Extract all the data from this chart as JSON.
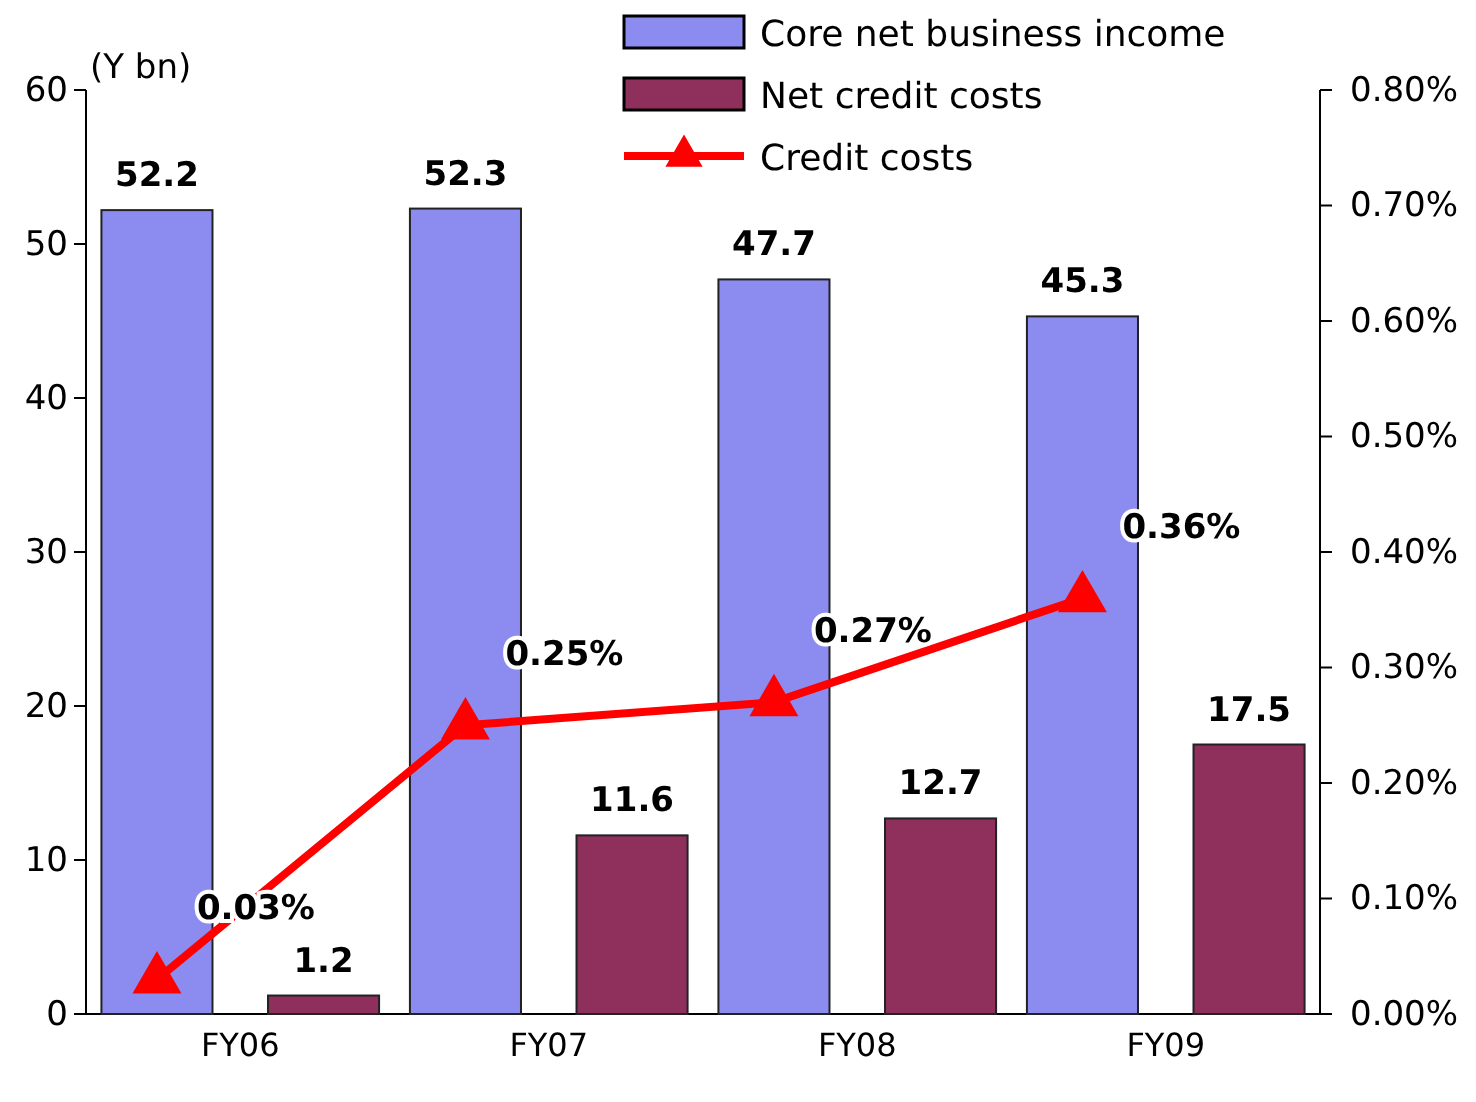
{
  "chart_data": {
    "type": "bar",
    "ylabel": "(Y bn)",
    "categories": [
      "FY06",
      "FY07",
      "FY08",
      "FY09"
    ],
    "series": [
      {
        "name": "Core net business income",
        "color": "#8c8cf0",
        "values": [
          52.2,
          52.3,
          47.7,
          45.3
        ],
        "value_labels": [
          "52.2",
          "52.3",
          "47.7",
          "45.3"
        ]
      },
      {
        "name": "Net credit costs",
        "color": "#8e2f5c",
        "values": [
          1.2,
          11.6,
          12.7,
          17.5
        ],
        "value_labels": [
          "1.2",
          "11.6",
          "12.7",
          "17.5"
        ]
      },
      {
        "name": "Credit costs",
        "type": "line",
        "axis": "y2",
        "color": "#ff0000",
        "marker": "triangle",
        "values": [
          0.03,
          0.25,
          0.27,
          0.36
        ],
        "value_labels": [
          "0.03%",
          "0.25%",
          "0.27%",
          "0.36%"
        ]
      }
    ],
    "ylim": [
      0,
      60
    ],
    "yticks": [
      0,
      10,
      20,
      30,
      40,
      50,
      60
    ],
    "y2lim": [
      0,
      0.8
    ],
    "y2ticks": [
      {
        "value": 0,
        "label": "0.00%"
      },
      {
        "value": 0.1,
        "label": "0.10%"
      },
      {
        "value": 0.2,
        "label": "0.20%"
      },
      {
        "value": 0.3,
        "label": "0.30%"
      },
      {
        "value": 0.4,
        "label": "0.40%"
      },
      {
        "value": 0.5,
        "label": "0.50%"
      },
      {
        "value": 0.6,
        "label": "0.60%"
      },
      {
        "value": 0.7,
        "label": "0.70%"
      },
      {
        "value": 0.8,
        "label": "0.80%"
      }
    ],
    "grid": false,
    "legend": "top right"
  }
}
